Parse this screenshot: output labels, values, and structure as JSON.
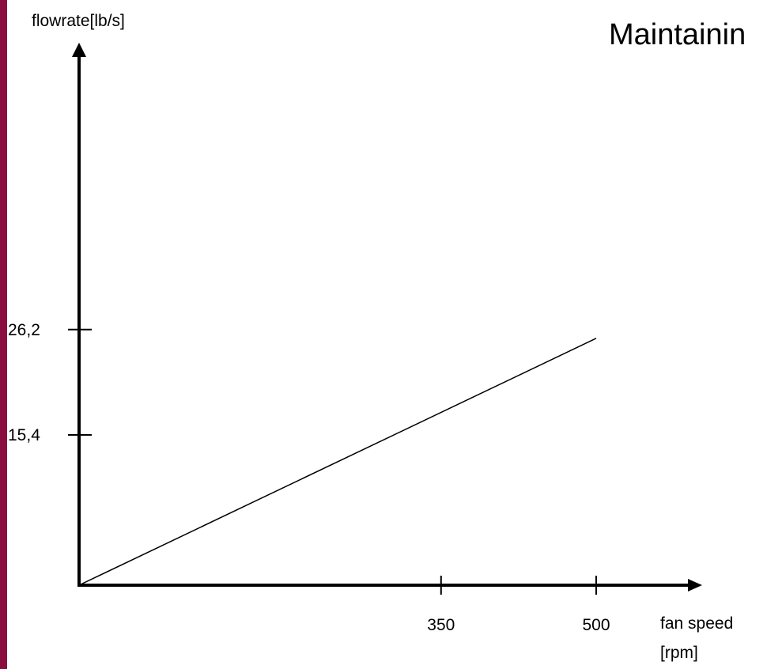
{
  "colors": {
    "accent_bar": "#8b0d3f",
    "axis": "#000000",
    "line": "#000000"
  },
  "chart_data": {
    "type": "line",
    "title": "Maintainin",
    "ylabel": "flowrate[lb/s]",
    "xlabel_lines": [
      "fan speed",
      "[rpm]"
    ],
    "x_ticks": [
      {
        "value": 350,
        "label": "350"
      },
      {
        "value": 500,
        "label": "500"
      }
    ],
    "y_ticks": [
      {
        "value": 15.4,
        "label": "15,4"
      },
      {
        "value": 26.2,
        "label": "26,2"
      }
    ],
    "series": [
      {
        "x": [
          0,
          500
        ],
        "y": [
          0,
          25.3
        ]
      }
    ]
  }
}
